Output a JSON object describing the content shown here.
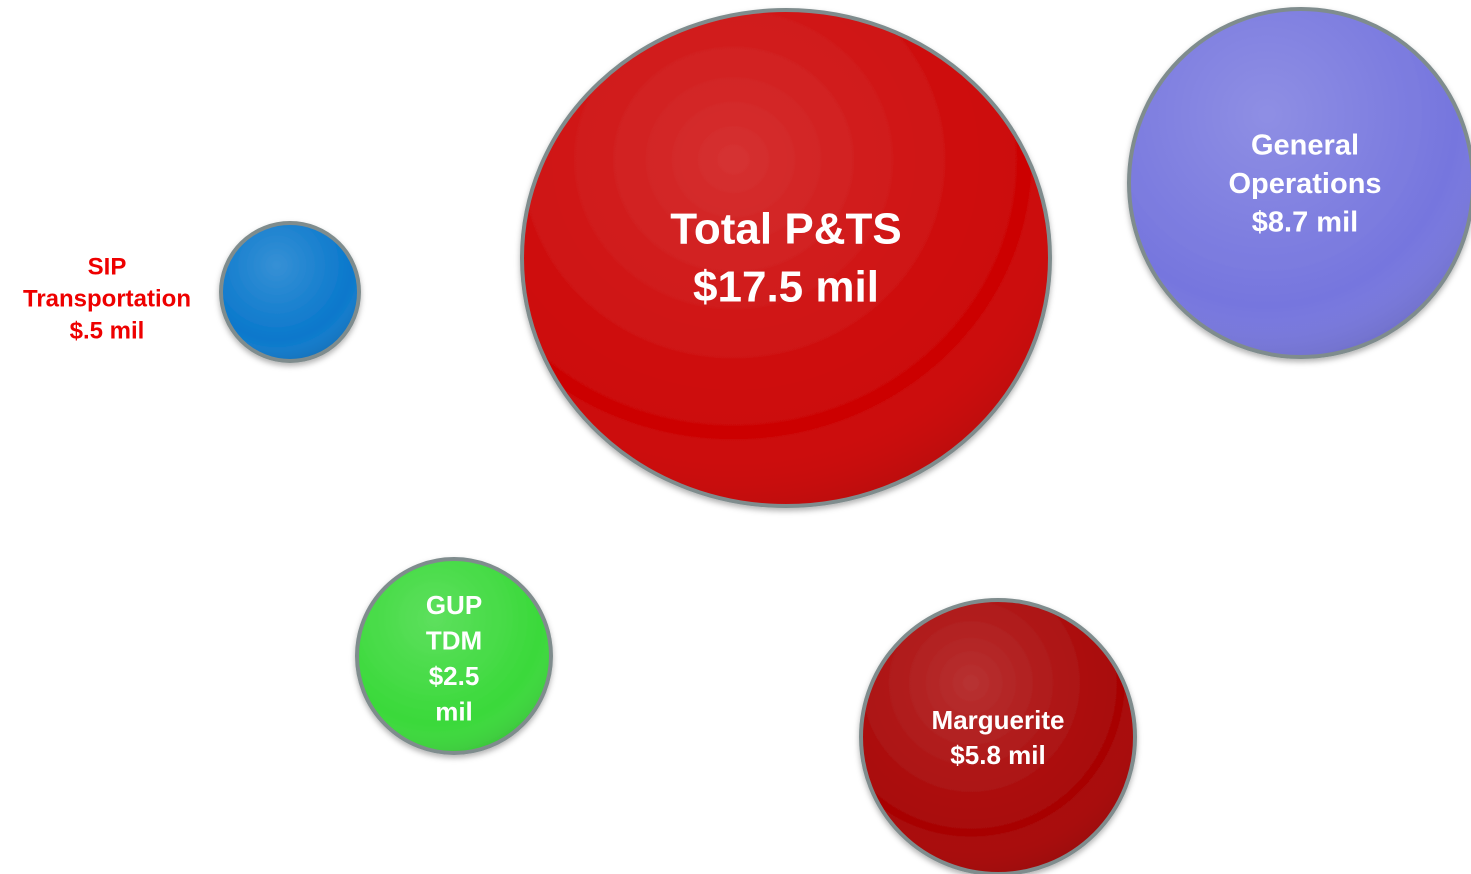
{
  "nodes": [
    {
      "lines": [
        "Total P&TS",
        "$17.5 mil"
      ]
    },
    {
      "lines": [
        "General",
        "Operations",
        "$8.7 mil"
      ]
    },
    {
      "lines": [
        "SIP",
        "Transportation",
        "$.5 mil"
      ]
    },
    {
      "lines": [
        "GUP",
        "TDM",
        "$2.5",
        "mil"
      ]
    },
    {
      "lines": [
        "Marguerite",
        "$5.8 mil"
      ]
    }
  ]
}
